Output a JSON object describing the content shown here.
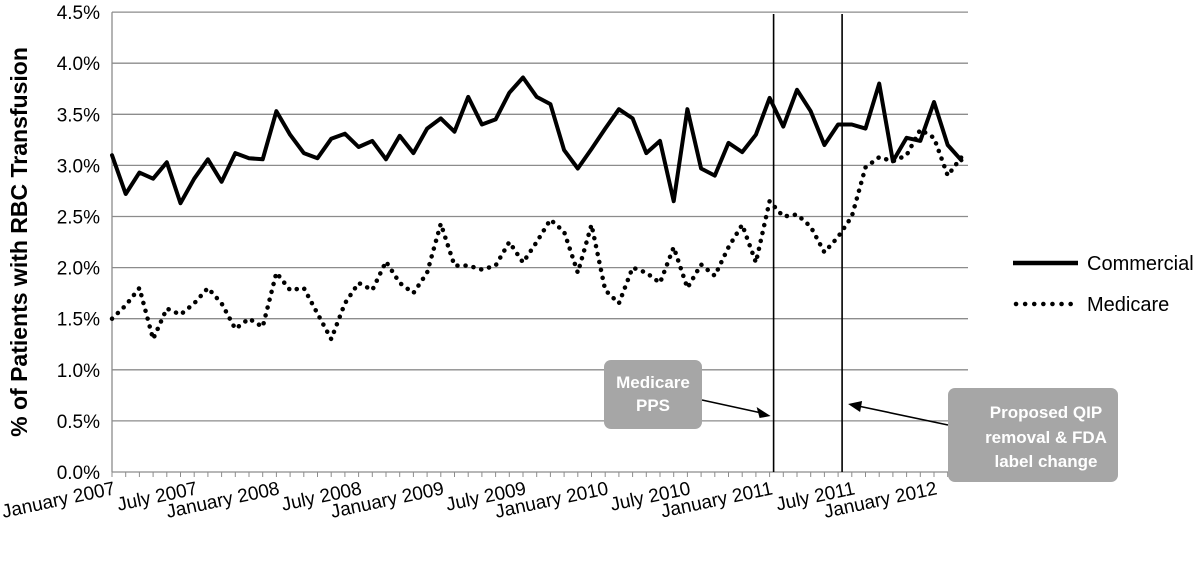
{
  "chart_data": {
    "type": "line",
    "title": "",
    "xlabel": "",
    "ylabel": "% of Patients with RBC Transfusion",
    "y_ticks": [
      "0.0%",
      "0.5%",
      "1.0%",
      "1.5%",
      "2.0%",
      "2.5%",
      "3.0%",
      "3.5%",
      "4.0%",
      "4.5%"
    ],
    "ylim": [
      0,
      4.5
    ],
    "x_ticks": [
      "January 2007",
      "July 2007",
      "January 2008",
      "July 2008",
      "January 2009",
      "July 2009",
      "January 2010",
      "July 2010",
      "January 2011",
      "July 2011",
      "January 2012"
    ],
    "x_start": "January 2007",
    "x_end": "April 2012",
    "grid": true,
    "legend_position": "right",
    "series": [
      {
        "name": "Commercial",
        "style": "solid",
        "color": "#000000",
        "values": [
          3.1,
          2.72,
          2.93,
          2.87,
          3.03,
          2.63,
          2.87,
          3.06,
          2.84,
          3.12,
          3.07,
          3.06,
          3.53,
          3.3,
          3.12,
          3.07,
          3.26,
          3.31,
          3.18,
          3.24,
          3.06,
          3.29,
          3.12,
          3.36,
          3.46,
          3.33,
          3.67,
          3.4,
          3.45,
          3.71,
          3.86,
          3.67,
          3.6,
          3.15,
          2.97,
          3.16,
          3.36,
          3.55,
          3.46,
          3.12,
          3.24,
          2.65,
          3.55,
          2.97,
          2.9,
          3.22,
          3.13,
          3.3,
          3.66,
          3.38,
          3.74,
          3.53,
          3.2,
          3.4,
          3.4,
          3.36,
          3.8,
          3.04,
          3.27,
          3.24,
          3.62,
          3.2,
          3.05
        ]
      },
      {
        "name": "Medicare",
        "style": "dotted",
        "color": "#000000",
        "values": [
          1.5,
          1.63,
          1.8,
          1.3,
          1.6,
          1.54,
          1.65,
          1.8,
          1.65,
          1.4,
          1.5,
          1.42,
          1.95,
          1.78,
          1.8,
          1.55,
          1.3,
          1.65,
          1.85,
          1.78,
          2.06,
          1.85,
          1.75,
          1.95,
          2.43,
          2.02,
          2.02,
          1.98,
          2.02,
          2.25,
          2.05,
          2.25,
          2.47,
          2.35,
          1.95,
          2.42,
          1.78,
          1.65,
          2.0,
          1.95,
          1.85,
          2.2,
          1.8,
          2.03,
          1.92,
          2.2,
          2.42,
          2.05,
          2.65,
          2.5,
          2.52,
          2.4,
          2.15,
          2.3,
          2.5,
          2.98,
          3.08,
          3.04,
          3.1,
          3.35,
          3.27,
          2.9,
          3.08
        ]
      }
    ],
    "events": [
      {
        "label": "Medicare PPS",
        "date": "January 2011"
      },
      {
        "label": "Proposed QIP removal & FDA label change",
        "date": "June 2011"
      }
    ]
  },
  "annotations": {
    "medicare_pps": [
      "Medicare",
      "PPS"
    ],
    "qip_removal": [
      "Proposed QIP",
      "removal & FDA",
      "label change"
    ]
  },
  "colors": {
    "callout_fill": "#a6a6a6",
    "grid": "#8c8c8c",
    "axis": "#8c8c8c",
    "series": "#000000"
  }
}
